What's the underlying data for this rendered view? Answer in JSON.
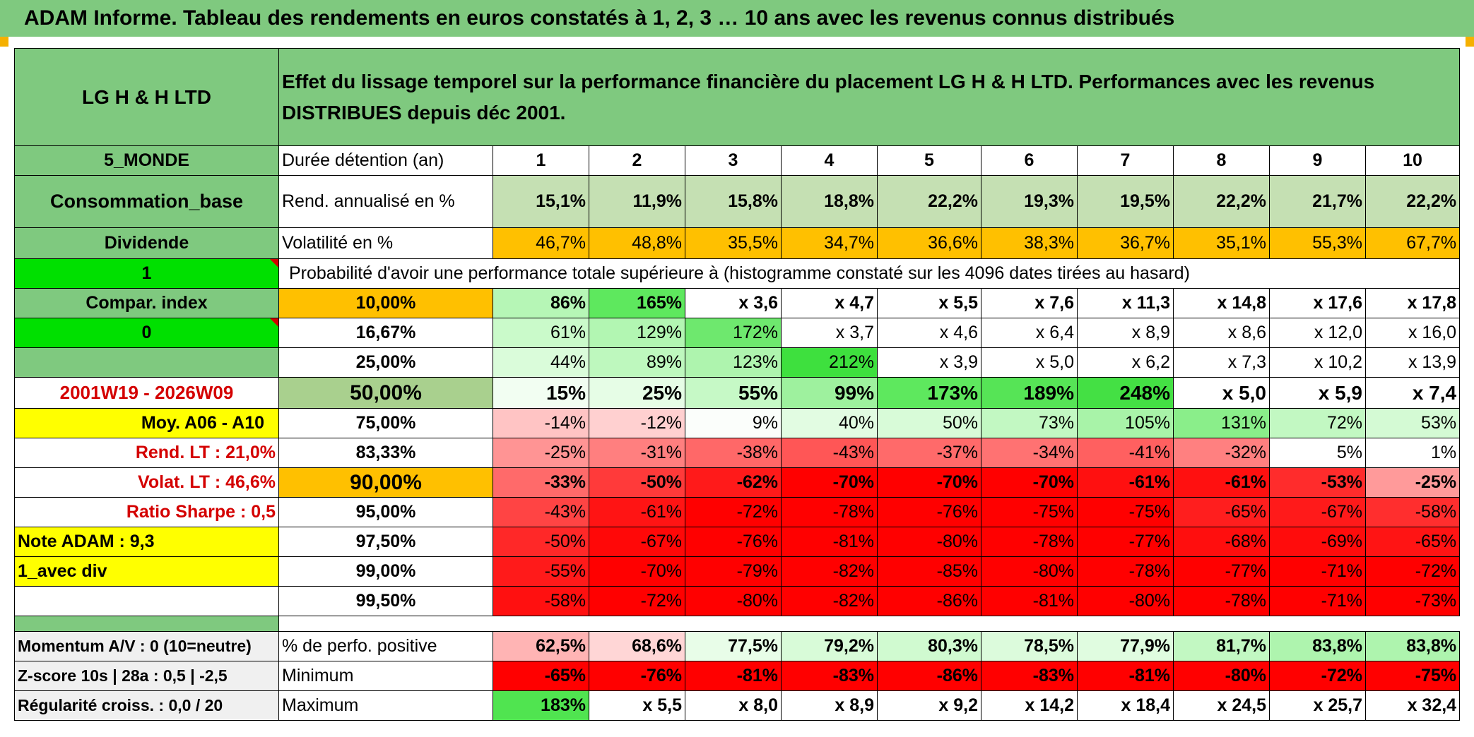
{
  "header": {
    "title": "ADAM Informe. Tableau des rendements en euros constatés à 1, 2, 3 … 10 ans avec les revenus connus distribués"
  },
  "left": {
    "fund": "LG H & H LTD",
    "region": "5_MONDE",
    "profile": "Consommation_base",
    "dividend": "Dividende",
    "one": "1",
    "compar": "Compar. index",
    "zero": "0",
    "period": "2001W19 - 2026W09",
    "moy": "Moy. A06 - A10",
    "rend_lt": "Rend. LT :   21,0%",
    "volat_lt": "Volat. LT :   46,6%",
    "sharpe": "Ratio Sharpe :    0,5",
    "note": "Note ADAM : 9,3",
    "div": "1_avec div",
    "momentum": "Momentum A/V : 0 (10=neutre)",
    "zscore": "Z-score 10s | 28a : 0,5 | -2,5",
    "regularite": "Régularité croiss. : 0,0 / 20"
  },
  "description": "Effet du lissage temporel sur la performance financière du placement LG H & H LTD. Performances avec les revenus DISTRIBUES depuis déc 2001.",
  "durations": {
    "label": "Durée détention (an)",
    "values": [
      "1",
      "2",
      "3",
      "4",
      "5",
      "6",
      "7",
      "8",
      "9",
      "10"
    ]
  },
  "rend": {
    "label": "Rend. annualisé en %",
    "values": [
      "15,1%",
      "11,9%",
      "15,8%",
      "18,8%",
      "22,2%",
      "19,3%",
      "19,5%",
      "22,2%",
      "21,7%",
      "22,2%"
    ]
  },
  "vol": {
    "label": "Volatilité en %",
    "values": [
      "46,7%",
      "48,8%",
      "35,5%",
      "34,7%",
      "36,6%",
      "38,3%",
      "36,7%",
      "35,1%",
      "55,3%",
      "67,7%"
    ]
  },
  "prob_title": "Probabilité d'avoir une performance totale supérieure à (histogramme constaté sur les 4096 dates tirées au hasard)",
  "percentiles": [
    {
      "p": "10,00%",
      "values": [
        "86%",
        "165%",
        "x 3,6",
        "x 4,7",
        "x 5,5",
        "x 7,6",
        "x 11,3",
        "x 14,8",
        "x 17,6",
        "x 17,8"
      ]
    },
    {
      "p": "16,67%",
      "values": [
        "61%",
        "129%",
        "172%",
        "x 3,7",
        "x 4,6",
        "x 6,4",
        "x 8,9",
        "x 8,6",
        "x 12,0",
        "x 16,0"
      ]
    },
    {
      "p": "25,00%",
      "values": [
        "44%",
        "89%",
        "123%",
        "212%",
        "x 3,9",
        "x 5,0",
        "x 6,2",
        "x 7,3",
        "x 10,2",
        "x 13,9"
      ]
    },
    {
      "p": "50,00%",
      "values": [
        "15%",
        "25%",
        "55%",
        "99%",
        "173%",
        "189%",
        "248%",
        "x 5,0",
        "x 5,9",
        "x 7,4"
      ]
    },
    {
      "p": "75,00%",
      "values": [
        "-14%",
        "-12%",
        "9%",
        "40%",
        "50%",
        "73%",
        "105%",
        "131%",
        "72%",
        "53%"
      ]
    },
    {
      "p": "83,33%",
      "values": [
        "-25%",
        "-31%",
        "-38%",
        "-43%",
        "-37%",
        "-34%",
        "-41%",
        "-32%",
        "5%",
        "1%"
      ]
    },
    {
      "p": "90,00%",
      "values": [
        "-33%",
        "-50%",
        "-62%",
        "-70%",
        "-70%",
        "-70%",
        "-61%",
        "-61%",
        "-53%",
        "-25%"
      ]
    },
    {
      "p": "95,00%",
      "values": [
        "-43%",
        "-61%",
        "-72%",
        "-78%",
        "-76%",
        "-75%",
        "-75%",
        "-65%",
        "-67%",
        "-58%"
      ]
    },
    {
      "p": "97,50%",
      "values": [
        "-50%",
        "-67%",
        "-76%",
        "-81%",
        "-80%",
        "-78%",
        "-77%",
        "-68%",
        "-69%",
        "-65%"
      ]
    },
    {
      "p": "99,00%",
      "values": [
        "-55%",
        "-70%",
        "-79%",
        "-82%",
        "-85%",
        "-80%",
        "-78%",
        "-77%",
        "-71%",
        "-72%"
      ]
    },
    {
      "p": "99,50%",
      "values": [
        "-58%",
        "-72%",
        "-80%",
        "-82%",
        "-86%",
        "-81%",
        "-80%",
        "-78%",
        "-71%",
        "-73%"
      ]
    }
  ],
  "positive": {
    "label": "% de perfo. positive",
    "values": [
      "62,5%",
      "68,6%",
      "77,5%",
      "79,2%",
      "80,3%",
      "78,5%",
      "77,9%",
      "81,7%",
      "83,8%",
      "83,8%"
    ]
  },
  "minimum": {
    "label": "Minimum",
    "values": [
      "-65%",
      "-76%",
      "-81%",
      "-83%",
      "-86%",
      "-83%",
      "-81%",
      "-80%",
      "-72%",
      "-75%"
    ]
  },
  "maximum": {
    "label": "Maximum",
    "values": [
      "183%",
      "x 5,5",
      "x 8,0",
      "x 8,9",
      "x 9,2",
      "x 14,2",
      "x 18,4",
      "x 24,5",
      "x 25,7",
      "x 32,4"
    ]
  },
  "colors": {
    "header_green": "#7fc97f",
    "rend_cells": "#c5e0b3",
    "vol_orange": "#ffc000",
    "bright_green": "#00e000",
    "yellow": "#ffff00",
    "red": "#ff0000",
    "label_red": "#d40000"
  },
  "cell_colors": {
    "percentiles": [
      [
        "#b6f6b6",
        "#5ee85e",
        "#fff",
        "#fff",
        "#fff",
        "#fff",
        "#fff",
        "#fff",
        "#fff",
        "#fff"
      ],
      [
        "#cafaca",
        "#b2f6b2",
        "#6ee86e",
        "#fff",
        "#fff",
        "#fff",
        "#fff",
        "#fff",
        "#fff",
        "#fff"
      ],
      [
        "#dafcda",
        "#bef8be",
        "#aef4ae",
        "#3ee03e",
        "#fff",
        "#fff",
        "#fff",
        "#fff",
        "#fff",
        "#fff"
      ],
      [
        "#f2fef2",
        "#e6fde6",
        "#c6f9c6",
        "#9ef19e",
        "#5ee85e",
        "#56e456",
        "#44e044",
        "#fff",
        "#fff",
        "#fff"
      ],
      [
        "#ffc4c4",
        "#ffd0d0",
        "#fbfefb",
        "#e2fce2",
        "#d8fbd8",
        "#c2f8c2",
        "#a8f3a8",
        "#8aee8a",
        "#c2f8c2",
        "#d4fad4"
      ],
      [
        "#ff9494",
        "#ff7f7f",
        "#ff6868",
        "#ff5656",
        "#ff6a6a",
        "#ff7272",
        "#ff6060",
        "#ff8080",
        "#fff",
        "#fff"
      ],
      [
        "#ff6a6a",
        "#ff3a3a",
        "#ff1a1a",
        "#ff0000",
        "#ff0000",
        "#ff0000",
        "#ff1010",
        "#ff1010",
        "#ff2c2c",
        "#ff9a9a"
      ],
      [
        "#ff4444",
        "#ff1414",
        "#ff0000",
        "#ff0000",
        "#ff0000",
        "#ff0000",
        "#ff0000",
        "#ff1e1e",
        "#ff1a1a",
        "#ff2e2e"
      ],
      [
        "#ff2828",
        "#ff0808",
        "#ff0000",
        "#ff0000",
        "#ff0000",
        "#ff0000",
        "#ff0000",
        "#ff0e0e",
        "#ff0c0c",
        "#ff1414"
      ],
      [
        "#ff1a1a",
        "#ff0000",
        "#ff0000",
        "#ff0000",
        "#ff0000",
        "#ff0000",
        "#ff0000",
        "#ff0000",
        "#ff0000",
        "#ff0000"
      ],
      [
        "#ff1010",
        "#ff0000",
        "#ff0000",
        "#ff0000",
        "#ff0000",
        "#ff0000",
        "#ff0000",
        "#ff0000",
        "#ff0000",
        "#ff0000"
      ]
    ],
    "positive": [
      "#ffb4b4",
      "#ffd6d6",
      "#e8fde8",
      "#d8fbd8",
      "#d0fad0",
      "#dcfbdc",
      "#e0fce0",
      "#c2f8c2",
      "#aef4ae",
      "#aef4ae"
    ],
    "minimum": [
      "#ff0000",
      "#ff0000",
      "#ff0000",
      "#ff0000",
      "#ff0000",
      "#ff0000",
      "#ff0000",
      "#ff0000",
      "#ff0000",
      "#ff0000"
    ],
    "maximum": [
      "#50e450",
      "#fff",
      "#fff",
      "#fff",
      "#fff",
      "#fff",
      "#fff",
      "#fff",
      "#fff",
      "#fff"
    ]
  }
}
